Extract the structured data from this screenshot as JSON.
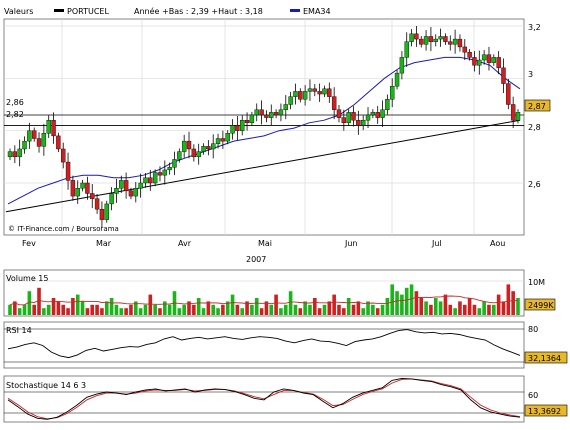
{
  "header": {
    "valeurs_label": "Valeurs",
    "ticker_label": "PORTUCEL",
    "range_label": "Année +Bas : 2,39 +Haut : 3,18",
    "ema_label": "EMA34"
  },
  "copyright": "© IT-Finance.com / Boursorama",
  "colors": {
    "up_candle": "#19b619",
    "down_candle": "#d11f1f",
    "ema_line": "#1a1ab4",
    "trend_line": "#000000",
    "value_box": "#e8b82a",
    "volume_avg": "#c42b2b",
    "stoch_signal": "#d11f1f",
    "grid": "#dcdcdc"
  },
  "x_axis": {
    "month_labels": [
      "Fev",
      "Mar",
      "Avr",
      "Mai",
      "Jun",
      "Jul",
      "Aou"
    ],
    "year_label": "2007"
  },
  "price_panel": {
    "ticks": [
      "3,2",
      "3",
      "2,8",
      "2,6"
    ],
    "reference_lines": [
      "2,86",
      "2,82"
    ],
    "last_value_label": "2,87"
  },
  "volume_panel": {
    "title": "Volume 15",
    "tick_label": "10M",
    "last_value_label": "2499K"
  },
  "rsi_panel": {
    "title": "RSI 14",
    "tick_label": "80",
    "last_value_label": "32,1364"
  },
  "stoch_panel": {
    "title": "Stochastique 14 6 3",
    "tick_label": "60",
    "last_value_label": "13,3692"
  },
  "chart_data": [
    {
      "type": "candlestick",
      "name": "PORTUCEL",
      "title": "Valeurs PORTUCEL",
      "ylim": [
        2.39,
        3.23
      ],
      "yticks": [
        2.6,
        2.8,
        3.0,
        3.2
      ],
      "horizontal_lines": [
        2.86,
        2.82
      ],
      "year_low": 2.39,
      "year_high": 3.18,
      "last_close": 2.87,
      "period_start": "2007-01-15",
      "period_end": "2007-08-08",
      "closes": [
        2.72,
        2.7,
        2.73,
        2.76,
        2.8,
        2.77,
        2.74,
        2.79,
        2.84,
        2.78,
        2.73,
        2.68,
        2.61,
        2.55,
        2.58,
        2.6,
        2.56,
        2.54,
        2.5,
        2.46,
        2.52,
        2.56,
        2.58,
        2.61,
        2.57,
        2.55,
        2.58,
        2.6,
        2.62,
        2.6,
        2.64,
        2.63,
        2.65,
        2.66,
        2.69,
        2.72,
        2.76,
        2.73,
        2.7,
        2.72,
        2.74,
        2.73,
        2.75,
        2.77,
        2.76,
        2.79,
        2.82,
        2.8,
        2.84,
        2.83,
        2.86,
        2.88,
        2.86,
        2.85,
        2.87,
        2.86,
        2.88,
        2.9,
        2.93,
        2.95,
        2.92,
        2.95,
        2.96,
        2.95,
        2.94,
        2.96,
        2.93,
        2.88,
        2.85,
        2.83,
        2.87,
        2.84,
        2.82,
        2.84,
        2.86,
        2.87,
        2.85,
        2.88,
        2.92,
        2.97,
        3.02,
        3.08,
        3.14,
        3.17,
        3.15,
        3.13,
        3.16,
        3.14,
        3.15,
        3.16,
        3.14,
        3.13,
        3.15,
        3.12,
        3.1,
        3.08,
        3.05,
        3.07,
        3.09,
        3.06,
        3.08,
        3.04,
        2.98,
        2.9,
        2.84,
        2.87
      ]
    },
    {
      "type": "line",
      "name": "EMA34",
      "values": [
        2.52,
        2.55,
        2.58,
        2.6,
        2.62,
        2.63,
        2.63,
        2.62,
        2.62,
        2.63,
        2.65,
        2.68,
        2.7,
        2.72,
        2.74,
        2.76,
        2.77,
        2.78,
        2.8,
        2.81,
        2.83,
        2.84,
        2.86,
        2.9,
        2.95,
        3.0,
        3.04,
        3.06,
        3.07,
        3.08,
        3.08,
        3.07,
        3.05,
        3.0,
        2.96
      ]
    },
    {
      "type": "line",
      "name": "Trend line",
      "points": [
        {
          "x": "2007-01-15",
          "y": 2.49
        },
        {
          "x": "2007-08-08",
          "y": 2.84
        }
      ]
    },
    {
      "type": "bar",
      "name": "Volume 15",
      "ytick": "10M",
      "last_value": "2499K",
      "values": [
        3,
        4,
        2,
        3,
        7,
        3,
        8,
        2,
        3,
        5,
        4,
        3,
        2,
        5,
        6,
        4,
        2,
        3,
        3,
        2,
        4,
        5,
        3,
        2,
        2,
        3,
        4,
        2,
        3,
        6,
        3,
        2,
        4,
        3,
        7,
        2,
        3,
        4,
        3,
        5,
        2,
        4,
        3,
        2,
        3,
        4,
        6,
        3,
        2,
        4,
        3,
        5,
        2,
        4,
        3,
        6,
        2,
        3,
        7,
        3,
        2,
        4,
        3,
        5,
        2,
        3,
        4,
        6,
        3,
        2,
        5,
        3,
        4,
        2,
        4,
        3,
        2,
        3,
        5,
        9,
        7,
        6,
        8,
        9,
        7,
        5,
        4,
        3,
        5,
        4,
        6,
        3,
        2,
        4,
        3,
        5,
        3,
        2,
        4,
        3,
        3,
        6,
        4,
        9,
        7,
        5
      ]
    },
    {
      "type": "line",
      "name": "RSI 14",
      "ytick": 80,
      "last_value": "32,1364",
      "values": [
        44,
        47,
        52,
        55,
        50,
        38,
        31,
        28,
        33,
        41,
        45,
        40,
        43,
        46,
        48,
        47,
        52,
        55,
        62,
        66,
        60,
        63,
        65,
        62,
        64,
        66,
        63,
        61,
        64,
        66,
        65,
        63,
        58,
        55,
        59,
        62,
        58,
        57,
        54,
        50,
        57,
        60,
        62,
        66,
        72,
        77,
        79,
        75,
        73,
        74,
        71,
        72,
        70,
        66,
        63,
        60,
        51,
        44,
        38,
        32
      ]
    },
    {
      "type": "line",
      "name": "Stochastique 14 6 3",
      "ytick": 60,
      "last_value": "13,3692",
      "series": [
        {
          "name": "%K",
          "values": [
            45,
            32,
            18,
            10,
            8,
            12,
            22,
            35,
            50,
            56,
            60,
            58,
            55,
            60,
            64,
            66,
            62,
            64,
            66,
            60,
            64,
            66,
            65,
            61,
            55,
            48,
            45,
            60,
            66,
            63,
            58,
            55,
            42,
            30,
            38,
            50,
            58,
            63,
            68,
            82,
            86,
            85,
            82,
            80,
            74,
            70,
            64,
            45,
            30,
            22,
            18,
            14,
            12
          ]
        },
        {
          "name": "%D",
          "values": [
            48,
            36,
            22,
            13,
            9,
            11,
            19,
            31,
            45,
            53,
            58,
            58,
            56,
            58,
            62,
            64,
            63,
            63,
            65,
            62,
            63,
            65,
            65,
            62,
            57,
            51,
            47,
            55,
            63,
            63,
            59,
            56,
            46,
            34,
            36,
            46,
            55,
            61,
            66,
            77,
            84,
            85,
            83,
            81,
            76,
            72,
            66,
            50,
            35,
            26,
            20,
            16,
            13
          ]
        }
      ]
    }
  ]
}
